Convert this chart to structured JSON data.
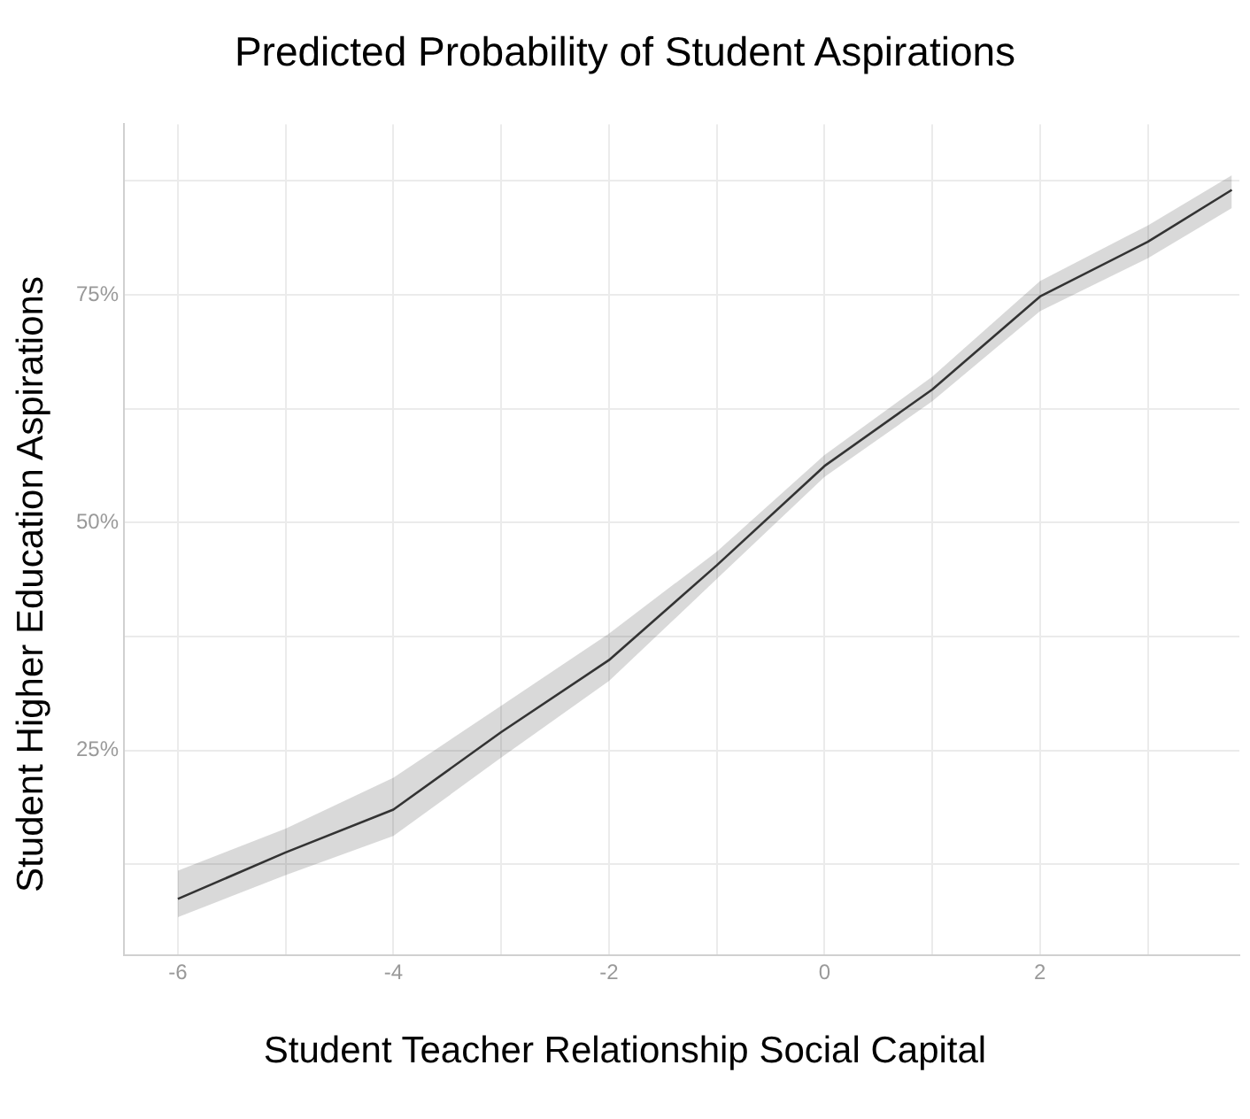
{
  "chart_data": {
    "type": "line",
    "title": "Predicted Probability of Student Aspirations",
    "xlabel": "Student Teacher Relationship Social Capital",
    "ylabel": "Student Higher Education Aspirations",
    "series": [
      {
        "color": "#333333",
        "x": [
          -6,
          -5,
          -4,
          -3,
          -2,
          -1,
          0,
          1,
          2,
          3,
          3.78
        ],
        "values": [
          8.7,
          13.8,
          18.5,
          27.0,
          34.9,
          45.3,
          56.2,
          64.6,
          74.8,
          80.8,
          86.5
        ],
        "lower": [
          6.7,
          11.3,
          15.6,
          24.2,
          32.6,
          43.8,
          55.0,
          63.3,
          73.2,
          79.0,
          84.5
        ],
        "upper": [
          11.8,
          16.4,
          22.0,
          29.9,
          37.8,
          46.8,
          57.4,
          66.0,
          76.5,
          82.6,
          88.1
        ]
      }
    ],
    "xlim": [
      -6.5,
      3.85
    ],
    "ylim": [
      2.5,
      93.7
    ],
    "xticks": [
      -6,
      {
        "value": -5,
        "label": null
      },
      -4,
      {
        "value": -3,
        "label": null
      },
      -2,
      {
        "value": -1,
        "label": null
      },
      0,
      {
        "value": 1,
        "label": null
      },
      2,
      {
        "value": 3,
        "label": null
      }
    ],
    "yticks": [
      {
        "value": 12.5,
        "label": null
      },
      {
        "value": 25,
        "label": "25%"
      },
      {
        "value": 37.5,
        "label": null
      },
      {
        "value": 50,
        "label": "50%"
      },
      {
        "value": 62.5,
        "label": null
      },
      {
        "value": 75,
        "label": "75%"
      },
      {
        "value": 87.5,
        "label": null
      }
    ],
    "grid": true,
    "legend": false,
    "marker": "none",
    "line_style": "solid"
  }
}
